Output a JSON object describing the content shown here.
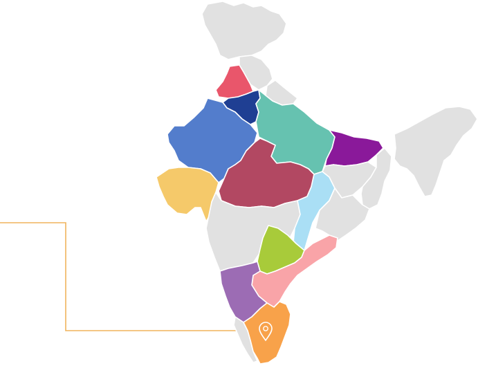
{
  "map": {
    "subject": "India",
    "base_color": "#e1e1e1",
    "border_color": "#ffffff",
    "connector_color": "#f0b35b",
    "marker": {
      "icon": "location-pin-icon",
      "color": "#ffffff"
    },
    "regions": [
      {
        "id": "jammu-kashmir-ladakh",
        "color": "#e1e1e1",
        "highlighted": false
      },
      {
        "id": "himachal-pradesh",
        "color": "#e1e1e1",
        "highlighted": false
      },
      {
        "id": "uttarakhand",
        "color": "#e1e1e1",
        "highlighted": false
      },
      {
        "id": "punjab",
        "color": "#e9566b",
        "highlighted": true
      },
      {
        "id": "haryana",
        "color": "#1f3f93",
        "highlighted": true
      },
      {
        "id": "rajasthan",
        "color": "#537dcc",
        "highlighted": true
      },
      {
        "id": "uttar-pradesh",
        "color": "#66c2b0",
        "highlighted": true
      },
      {
        "id": "bihar",
        "color": "#8a199a",
        "highlighted": true
      },
      {
        "id": "gujarat",
        "color": "#f5c96a",
        "highlighted": true
      },
      {
        "id": "madhya-pradesh",
        "color": "#b24862",
        "highlighted": true
      },
      {
        "id": "chhattisgarh",
        "color": "#aadff5",
        "highlighted": true
      },
      {
        "id": "telangana",
        "color": "#a8cb3a",
        "highlighted": true
      },
      {
        "id": "andhra-pradesh",
        "color": "#f9a4a8",
        "highlighted": true
      },
      {
        "id": "karnataka",
        "color": "#9c6cb4",
        "highlighted": true
      },
      {
        "id": "tamil-nadu",
        "color": "#f8a24a",
        "highlighted": true
      },
      {
        "id": "maharashtra",
        "color": "#e1e1e1",
        "highlighted": false
      },
      {
        "id": "kerala",
        "color": "#e1e1e1",
        "highlighted": false
      },
      {
        "id": "odisha",
        "color": "#e1e1e1",
        "highlighted": false
      },
      {
        "id": "jharkhand",
        "color": "#e1e1e1",
        "highlighted": false
      },
      {
        "id": "west-bengal",
        "color": "#e1e1e1",
        "highlighted": false
      },
      {
        "id": "north-east",
        "color": "#e1e1e1",
        "highlighted": false
      }
    ]
  }
}
